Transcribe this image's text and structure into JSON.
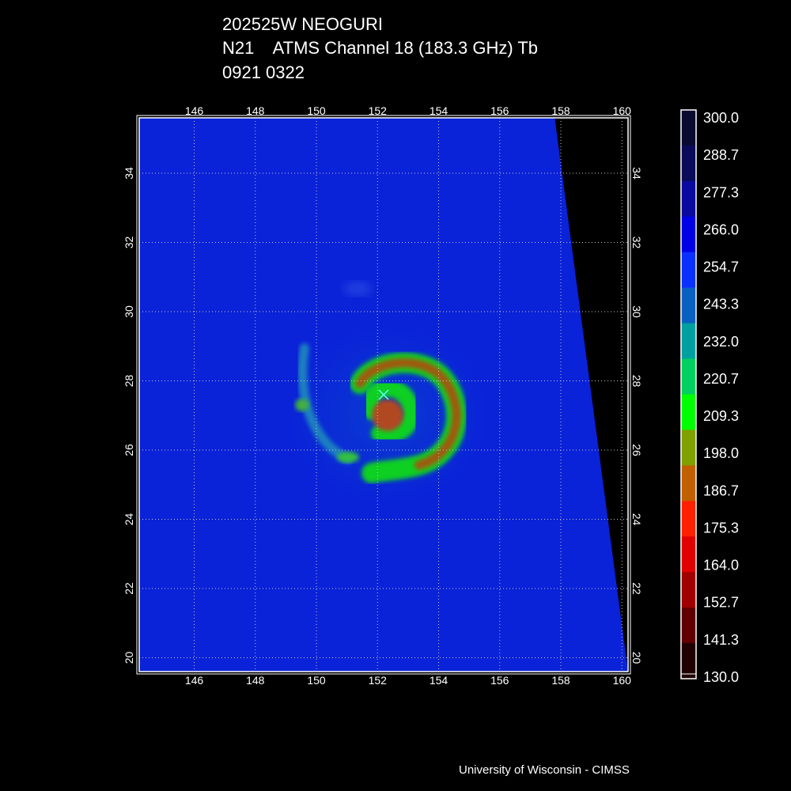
{
  "title": {
    "storm": "202525W NEOGURI",
    "sensor": "N21    ATMS Channel 18 (183.3 GHz) Tb",
    "datetime": "0921 0322"
  },
  "map": {
    "lon_range": [
      144.2,
      160.2
    ],
    "lat_range": [
      19.6,
      35.6
    ],
    "lon_ticks": [
      146,
      148,
      150,
      152,
      154,
      156,
      158,
      160
    ],
    "lat_ticks": [
      20,
      22,
      24,
      26,
      28,
      30,
      32,
      34
    ],
    "storm_center": {
      "lon": 152.2,
      "lat": 27.6,
      "marker": "x-icon"
    },
    "swath_edge_top_lon": 157.8,
    "swath_edge_bottom_lon": 160.2
  },
  "colorbar": {
    "labels": [
      "300.0",
      "288.7",
      "277.3",
      "266.0",
      "254.7",
      "243.3",
      "232.0",
      "220.7",
      "209.3",
      "198.0",
      "186.7",
      "175.3",
      "164.0",
      "152.7",
      "141.3",
      "130.0"
    ],
    "colors": [
      "#0a0a30",
      "#0a0a5a",
      "#0a0aa0",
      "#0000e6",
      "#0a30ff",
      "#0a60c0",
      "#00a0a0",
      "#00d060",
      "#00ff00",
      "#80a000",
      "#c06000",
      "#ff2000",
      "#e00000",
      "#a00000",
      "#600000",
      "#200000"
    ]
  },
  "credit": "University of Wisconsin - CIMSS"
}
